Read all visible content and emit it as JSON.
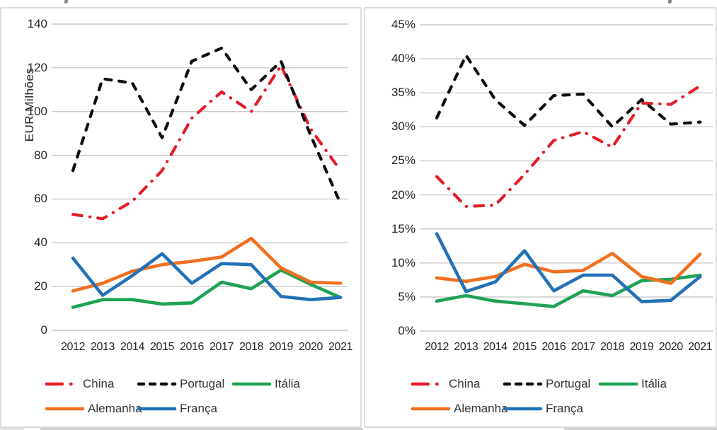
{
  "figure": {
    "description": "Two line chart panels comparing countries 2012-2021",
    "left_axis_title": "EUR Milhões"
  },
  "chart_data": [
    {
      "type": "line",
      "title": "",
      "xlabel": "",
      "ylabel": "EUR Milhões",
      "x_labels": [
        "2012",
        "2013",
        "2014",
        "2015",
        "2016",
        "2017",
        "2018",
        "2019",
        "2020",
        "2021"
      ],
      "ylim": [
        0,
        140
      ],
      "yticks": {
        "values": [
          0,
          20,
          40,
          60,
          80,
          100,
          120,
          140
        ],
        "labels": [
          "0",
          "20",
          "40",
          "60",
          "80",
          "100",
          "120",
          "140"
        ]
      },
      "grid": true,
      "legend_position": "bottom",
      "series": [
        {
          "name": "China",
          "color": "#e31d28",
          "dash": "dashdot",
          "values": [
            53,
            51,
            59,
            73,
            97,
            109,
            100,
            121,
            92,
            73
          ]
        },
        {
          "name": "Portugal",
          "color": "#0d0d0d",
          "dash": "dashed",
          "values": [
            73,
            115,
            113,
            88,
            123,
            129,
            110,
            123,
            89,
            58
          ]
        },
        {
          "name": "Itália",
          "color": "#1ea254",
          "dash": "solid",
          "values": [
            10.5,
            14,
            14,
            12,
            12.5,
            22,
            19,
            27.5,
            21,
            15
          ]
        },
        {
          "name": "Alemanha",
          "color": "#f07020",
          "dash": "solid",
          "values": [
            18,
            21.5,
            27,
            30,
            31.5,
            33.5,
            42,
            28.5,
            22,
            21.5
          ]
        },
        {
          "name": "França",
          "color": "#2371b5",
          "dash": "solid",
          "values": [
            33,
            16,
            25,
            35,
            21.5,
            30.5,
            30,
            15.5,
            14,
            15
          ]
        }
      ]
    },
    {
      "type": "line",
      "title": "",
      "xlabel": "",
      "ylabel": "",
      "x_labels": [
        "2012",
        "2013",
        "2014",
        "2015",
        "2016",
        "2017",
        "2018",
        "2019",
        "2020",
        "2021"
      ],
      "ylim": [
        0,
        45
      ],
      "yticks": {
        "values": [
          0,
          5,
          10,
          15,
          20,
          25,
          30,
          35,
          40,
          45
        ],
        "labels": [
          "0%",
          "5%",
          "10%",
          "15%",
          "20%",
          "25%",
          "30%",
          "35%",
          "40%",
          "45%"
        ]
      },
      "grid": true,
      "legend_position": "bottom",
      "series": [
        {
          "name": "China",
          "color": "#e31d28",
          "dash": "dashdot",
          "values": [
            22.7,
            18.3,
            18.5,
            23,
            28,
            29.3,
            27,
            33.5,
            33.3,
            36
          ]
        },
        {
          "name": "Portugal",
          "color": "#0d0d0d",
          "dash": "dashed",
          "values": [
            31.3,
            40.5,
            34,
            30.2,
            34.6,
            34.8,
            30,
            34,
            30.4,
            30.7
          ]
        },
        {
          "name": "Itália",
          "color": "#1ea254",
          "dash": "solid",
          "values": [
            4.4,
            5.2,
            4.4,
            4,
            3.6,
            5.9,
            5.2,
            7.4,
            7.6,
            8.2
          ]
        },
        {
          "name": "Alemanha",
          "color": "#f07020",
          "dash": "solid",
          "values": [
            7.8,
            7.3,
            8,
            9.8,
            8.7,
            8.9,
            11.4,
            8,
            7,
            11.3
          ]
        },
        {
          "name": "França",
          "color": "#2371b5",
          "dash": "solid",
          "values": [
            14.3,
            5.8,
            7.2,
            11.8,
            5.9,
            8.2,
            8.2,
            4.3,
            4.5,
            8
          ]
        }
      ]
    }
  ]
}
